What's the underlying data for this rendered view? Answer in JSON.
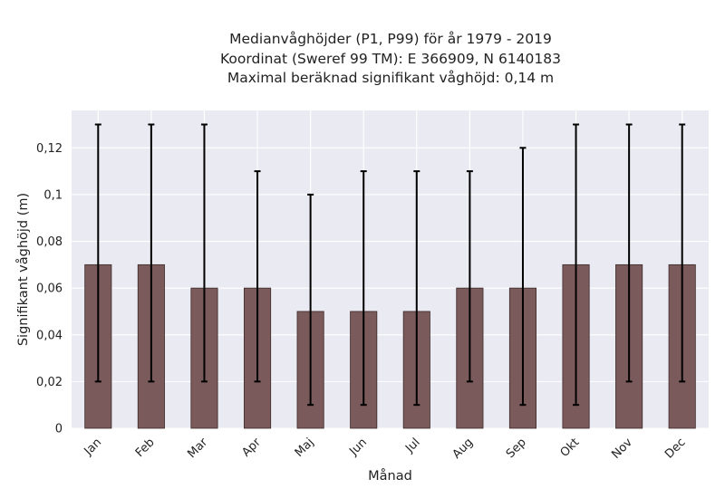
{
  "chart_data": {
    "type": "bar",
    "title_lines": [
      "Medianvåghöjder (P1, P99) för år 1979 - 2019",
      "Koordinat (Sweref 99 TM): E 366909, N 6140183",
      "Maximal beräknad signifikant våghöjd: 0,14 m"
    ],
    "xlabel": "Månad",
    "ylabel": "Signifikant våghöjd (m)",
    "categories": [
      "Jan",
      "Feb",
      "Mar",
      "Apr",
      "Maj",
      "Jun",
      "Jul",
      "Aug",
      "Sep",
      "Okt",
      "Nov",
      "Dec"
    ],
    "values": [
      0.07,
      0.07,
      0.06,
      0.06,
      0.05,
      0.05,
      0.05,
      0.06,
      0.06,
      0.07,
      0.07,
      0.07
    ],
    "p1": [
      0.02,
      0.02,
      0.02,
      0.02,
      0.01,
      0.01,
      0.01,
      0.02,
      0.01,
      0.01,
      0.02,
      0.02
    ],
    "p99": [
      0.13,
      0.13,
      0.13,
      0.11,
      0.1,
      0.11,
      0.11,
      0.11,
      0.12,
      0.13,
      0.13,
      0.13
    ],
    "ylim": [
      0,
      0.136
    ],
    "yticks": [
      0,
      0.02,
      0.04,
      0.06,
      0.08,
      0.1,
      0.12
    ],
    "ytick_labels": [
      "0",
      "0,02",
      "0,04",
      "0,06",
      "0,08",
      "0,1",
      "0,12"
    ],
    "grid": true,
    "colors": {
      "bar": "#7a5a5a",
      "bar_edge": "#3d2a2a",
      "background": "#eaeaf2",
      "grid": "#ffffff",
      "error_bar": "#000000"
    }
  }
}
